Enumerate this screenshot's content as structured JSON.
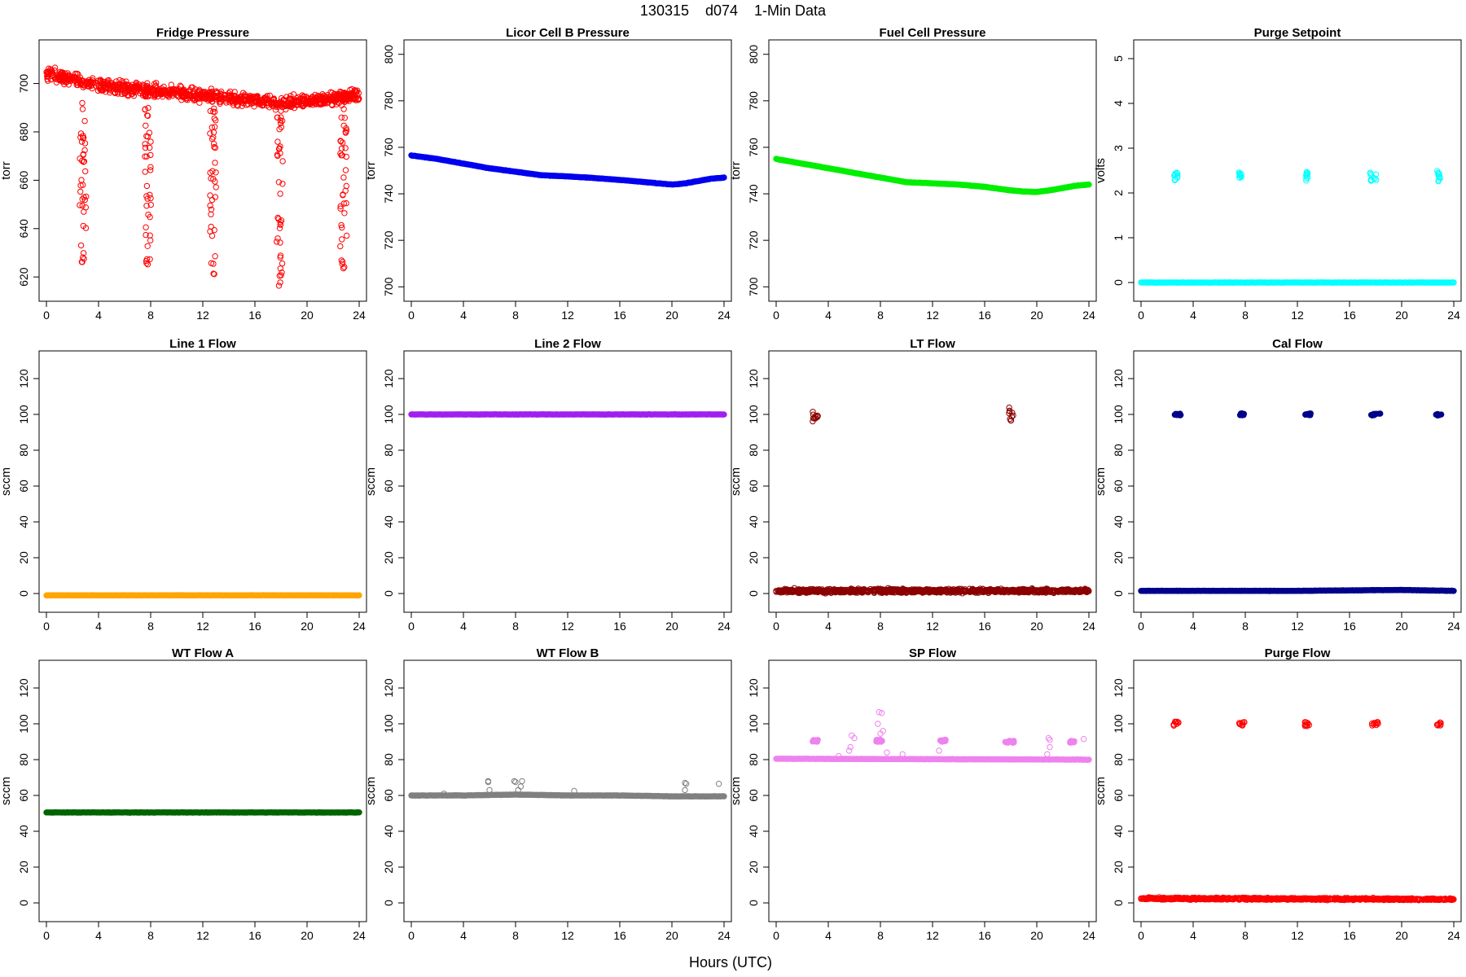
{
  "figure": {
    "title": "130315    d074    1-Min Data",
    "xlabel": "Hours (UTC)"
  },
  "chart_data": [
    {
      "type": "scatter",
      "title": "Fridge Pressure",
      "ylabel": "torr",
      "color": "#ff0000",
      "filled": false,
      "xlim": [
        0,
        24
      ],
      "xticks": [
        0,
        4,
        8,
        12,
        16,
        20,
        24
      ],
      "ylim": [
        614,
        714
      ],
      "yticks": [
        620,
        640,
        660,
        680,
        700
      ],
      "series": [
        {
          "name": "band",
          "kind": "noise",
          "points": [
            [
              0,
              704
            ],
            [
              1,
              703
            ],
            [
              2,
              702
            ],
            [
              3,
              700
            ],
            [
              4,
              699
            ],
            [
              6,
              698
            ],
            [
              8,
              697
            ],
            [
              10,
              696
            ],
            [
              12,
              695
            ],
            [
              14,
              694
            ],
            [
              16,
              693
            ],
            [
              18,
              692
            ],
            [
              20,
              693
            ],
            [
              22,
              694
            ],
            [
              24,
              695
            ]
          ],
          "jitter": 4.5,
          "density": 90
        },
        {
          "name": "spikes",
          "kind": "vertical",
          "clusters": [
            {
              "x": 2.8,
              "ymin": 626,
              "ymax": 692
            },
            {
              "x": 7.8,
              "ymin": 624,
              "ymax": 690
            },
            {
              "x": 12.8,
              "ymin": 621,
              "ymax": 690
            },
            {
              "x": 17.9,
              "ymin": 616,
              "ymax": 690
            },
            {
              "x": 22.8,
              "ymin": 622,
              "ymax": 690
            }
          ]
        }
      ]
    },
    {
      "type": "scatter",
      "title": "Licor Cell B Pressure",
      "ylabel": "torr",
      "color": "#0000ee",
      "filled": true,
      "xlim": [
        0,
        24
      ],
      "xticks": [
        0,
        4,
        8,
        12,
        16,
        20,
        24
      ],
      "ylim": [
        698,
        802
      ],
      "yticks": [
        700,
        720,
        740,
        760,
        780,
        800
      ],
      "series": [
        {
          "name": "pressure",
          "kind": "line",
          "points": [
            [
              0,
              756.5
            ],
            [
              2,
              755
            ],
            [
              4,
              753
            ],
            [
              6,
              751
            ],
            [
              8,
              749.5
            ],
            [
              10,
              748
            ],
            [
              12,
              747.5
            ],
            [
              14,
              746.8
            ],
            [
              16,
              746
            ],
            [
              18,
              745
            ],
            [
              19,
              744.5
            ],
            [
              20,
              744
            ],
            [
              21,
              744.5
            ],
            [
              22,
              745.5
            ],
            [
              23,
              746.5
            ],
            [
              24,
              747
            ]
          ]
        }
      ]
    },
    {
      "type": "scatter",
      "title": "Fuel Cell Pressure",
      "ylabel": "torr",
      "color": "#00ee00",
      "filled": true,
      "xlim": [
        0,
        24
      ],
      "xticks": [
        0,
        4,
        8,
        12,
        16,
        20,
        24
      ],
      "ylim": [
        698,
        802
      ],
      "yticks": [
        700,
        720,
        740,
        760,
        780,
        800
      ],
      "series": [
        {
          "name": "pressure",
          "kind": "line",
          "points": [
            [
              0,
              755
            ],
            [
              2,
              753
            ],
            [
              4,
              751
            ],
            [
              6,
              749
            ],
            [
              8,
              747
            ],
            [
              10,
              745
            ],
            [
              12,
              744.5
            ],
            [
              14,
              744
            ],
            [
              16,
              743
            ],
            [
              18,
              741.5
            ],
            [
              19,
              741
            ],
            [
              20,
              740.8
            ],
            [
              21,
              741.5
            ],
            [
              22,
              742.5
            ],
            [
              23,
              743.5
            ],
            [
              24,
              744
            ]
          ]
        }
      ]
    },
    {
      "type": "scatter",
      "title": "Purge Setpoint",
      "ylabel": "volts",
      "color": "#00ffff",
      "filled": false,
      "xlim": [
        0,
        24
      ],
      "xticks": [
        0,
        4,
        8,
        12,
        16,
        20,
        24
      ],
      "ylim": [
        -0.2,
        5.2
      ],
      "yticks": [
        0,
        1,
        2,
        3,
        4,
        5
      ],
      "series": [
        {
          "name": "baseline",
          "kind": "line",
          "points": [
            [
              0,
              0
            ],
            [
              24,
              0
            ]
          ]
        },
        {
          "name": "purges",
          "kind": "clusters",
          "clusters": [
            {
              "x": 2.7,
              "y": 2.35,
              "w": 0.3,
              "h": 0.12
            },
            {
              "x": 7.7,
              "y": 2.35,
              "w": 0.4,
              "h": 0.12
            },
            {
              "x": 12.7,
              "y": 2.37,
              "w": 0.3,
              "h": 0.12
            },
            {
              "x": 17.8,
              "y": 2.37,
              "w": 0.5,
              "h": 0.12
            },
            {
              "x": 22.8,
              "y": 2.37,
              "w": 0.3,
              "h": 0.12
            }
          ]
        }
      ]
    },
    {
      "type": "scatter",
      "title": "Line 1 Flow",
      "ylabel": "sccm",
      "color": "#ffa500",
      "filled": true,
      "xlim": [
        0,
        24
      ],
      "xticks": [
        0,
        4,
        8,
        12,
        16,
        20,
        24
      ],
      "ylim": [
        -5,
        130
      ],
      "yticks": [
        0,
        20,
        40,
        60,
        80,
        100,
        120
      ],
      "series": [
        {
          "name": "flow",
          "kind": "line",
          "points": [
            [
              0,
              -1
            ],
            [
              24,
              -1
            ]
          ]
        }
      ]
    },
    {
      "type": "scatter",
      "title": "Line 2 Flow",
      "ylabel": "sccm",
      "color": "#a020f0",
      "filled": true,
      "xlim": [
        0,
        24
      ],
      "xticks": [
        0,
        4,
        8,
        12,
        16,
        20,
        24
      ],
      "ylim": [
        -5,
        130
      ],
      "yticks": [
        0,
        20,
        40,
        60,
        80,
        100,
        120
      ],
      "series": [
        {
          "name": "flow",
          "kind": "line",
          "points": [
            [
              0,
              100
            ],
            [
              24,
              100
            ]
          ]
        }
      ]
    },
    {
      "type": "scatter",
      "title": "LT Flow",
      "ylabel": "sccm",
      "color": "#8b0000",
      "filled": false,
      "xlim": [
        0,
        24
      ],
      "xticks": [
        0,
        4,
        8,
        12,
        16,
        20,
        24
      ],
      "ylim": [
        -5,
        130
      ],
      "yticks": [
        0,
        20,
        40,
        60,
        80,
        100,
        120
      ],
      "series": [
        {
          "name": "baseline",
          "kind": "noise",
          "points": [
            [
              0,
              1.5
            ],
            [
              24,
              1.5
            ]
          ],
          "jitter": 1.8,
          "density": 90
        },
        {
          "name": "bursts",
          "kind": "clusters",
          "clusters": [
            {
              "x": 3.0,
              "y": 100,
              "w": 0.4,
              "h": 4
            },
            {
              "x": 18.0,
              "y": 100,
              "w": 0.4,
              "h": 4
            }
          ]
        }
      ]
    },
    {
      "type": "scatter",
      "title": "Cal Flow",
      "ylabel": "sccm",
      "color": "#00008b",
      "filled": true,
      "xlim": [
        0,
        24
      ],
      "xticks": [
        0,
        4,
        8,
        12,
        16,
        20,
        24
      ],
      "ylim": [
        -5,
        130
      ],
      "yticks": [
        0,
        20,
        40,
        60,
        80,
        100,
        120
      ],
      "series": [
        {
          "name": "baseline",
          "kind": "line",
          "points": [
            [
              0,
              1.5
            ],
            [
              12,
              1.5
            ],
            [
              20,
              2
            ],
            [
              24,
              1.5
            ]
          ]
        },
        {
          "name": "cal",
          "kind": "clusters",
          "clusters": [
            {
              "x": 2.8,
              "y": 100,
              "w": 0.5,
              "h": 0.6
            },
            {
              "x": 7.8,
              "y": 100,
              "w": 0.7,
              "h": 0.6
            },
            {
              "x": 12.8,
              "y": 100,
              "w": 0.5,
              "h": 0.6
            },
            {
              "x": 18.0,
              "y": 100,
              "w": 0.9,
              "h": 0.6
            },
            {
              "x": 22.8,
              "y": 100,
              "w": 0.5,
              "h": 0.6
            }
          ]
        }
      ]
    },
    {
      "type": "scatter",
      "title": "WT Flow A",
      "ylabel": "sccm",
      "color": "#006400",
      "filled": true,
      "xlim": [
        0,
        24
      ],
      "xticks": [
        0,
        4,
        8,
        12,
        16,
        20,
        24
      ],
      "ylim": [
        -5,
        130
      ],
      "yticks": [
        0,
        20,
        40,
        60,
        80,
        100,
        120
      ],
      "series": [
        {
          "name": "flow",
          "kind": "line",
          "points": [
            [
              0,
              50.5
            ],
            [
              24,
              50.5
            ]
          ]
        }
      ]
    },
    {
      "type": "scatter",
      "title": "WT Flow B",
      "ylabel": "sccm",
      "color": "#808080",
      "filled": true,
      "xlim": [
        0,
        24
      ],
      "xticks": [
        0,
        4,
        8,
        12,
        16,
        20,
        24
      ],
      "ylim": [
        -5,
        130
      ],
      "yticks": [
        0,
        20,
        40,
        60,
        80,
        100,
        120
      ],
      "series": [
        {
          "name": "flow",
          "kind": "line",
          "points": [
            [
              0,
              60
            ],
            [
              4,
              60
            ],
            [
              8,
              60.5
            ],
            [
              12,
              60
            ],
            [
              16,
              60
            ],
            [
              20,
              59.5
            ],
            [
              24,
              59.5
            ]
          ]
        },
        {
          "name": "outliers",
          "kind": "points",
          "points": [
            [
              5.9,
              67.5
            ],
            [
              5.9,
              68
            ],
            [
              6.0,
              63
            ],
            [
              7.9,
              68
            ],
            [
              8.0,
              67.5
            ],
            [
              8.2,
              63
            ],
            [
              8.4,
              65
            ],
            [
              8.5,
              68
            ],
            [
              2.5,
              61
            ],
            [
              12.5,
              62.5
            ],
            [
              21,
              67
            ],
            [
              21.1,
              66.5
            ],
            [
              21,
              63
            ],
            [
              23.6,
              66.5
            ]
          ]
        }
      ]
    },
    {
      "type": "scatter",
      "title": "SP Flow",
      "ylabel": "sccm",
      "color": "#ee82ee",
      "filled": true,
      "xlim": [
        0,
        24
      ],
      "xticks": [
        0,
        4,
        8,
        12,
        16,
        20,
        24
      ],
      "ylim": [
        -5,
        130
      ],
      "yticks": [
        0,
        20,
        40,
        60,
        80,
        100,
        120
      ],
      "series": [
        {
          "name": "flow",
          "kind": "line",
          "points": [
            [
              0,
              80.5
            ],
            [
              24,
              80
            ]
          ]
        },
        {
          "name": "steps",
          "kind": "clusters",
          "clusters": [
            {
              "x": 3.0,
              "y": 90.5,
              "w": 0.5,
              "h": 0.6
            },
            {
              "x": 7.9,
              "y": 90.5,
              "w": 0.5,
              "h": 0.6
            },
            {
              "x": 12.8,
              "y": 90.5,
              "w": 0.5,
              "h": 0.6
            },
            {
              "x": 17.9,
              "y": 90,
              "w": 0.8,
              "h": 0.6
            },
            {
              "x": 22.7,
              "y": 90,
              "w": 0.4,
              "h": 0.6
            }
          ]
        },
        {
          "name": "outliers",
          "kind": "points",
          "points": [
            [
              7.9,
              106.5
            ],
            [
              8.1,
              106
            ],
            [
              7.8,
              100
            ],
            [
              8.2,
              96
            ],
            [
              8.0,
              94.5
            ],
            [
              5.8,
              93.5
            ],
            [
              6.0,
              92
            ],
            [
              5.7,
              87
            ],
            [
              5.6,
              85
            ],
            [
              4.8,
              82
            ],
            [
              8.5,
              84
            ],
            [
              12.5,
              85
            ],
            [
              20.9,
              92
            ],
            [
              21.0,
              91
            ],
            [
              21.0,
              87
            ],
            [
              20.8,
              83
            ],
            [
              23.6,
              91.5
            ],
            [
              9.7,
              83
            ]
          ]
        }
      ]
    },
    {
      "type": "scatter",
      "title": "Purge Flow",
      "ylabel": "sccm",
      "color": "#ff0000",
      "filled": false,
      "xlim": [
        0,
        24
      ],
      "xticks": [
        0,
        4,
        8,
        12,
        16,
        20,
        24
      ],
      "ylim": [
        -5,
        130
      ],
      "yticks": [
        0,
        20,
        40,
        60,
        80,
        100,
        120
      ],
      "series": [
        {
          "name": "baseline",
          "kind": "noise",
          "points": [
            [
              0,
              2.5
            ],
            [
              24,
              2
            ]
          ],
          "jitter": 0.9,
          "density": 90
        },
        {
          "name": "purges",
          "kind": "clusters",
          "clusters": [
            {
              "x": 2.7,
              "y": 100,
              "w": 0.4,
              "h": 1.2
            },
            {
              "x": 7.7,
              "y": 100,
              "w": 0.6,
              "h": 1.0
            },
            {
              "x": 12.7,
              "y": 100,
              "w": 0.4,
              "h": 1.5
            },
            {
              "x": 17.9,
              "y": 100,
              "w": 0.7,
              "h": 1.0
            },
            {
              "x": 22.8,
              "y": 100,
              "w": 0.4,
              "h": 1.0
            }
          ]
        }
      ]
    }
  ]
}
